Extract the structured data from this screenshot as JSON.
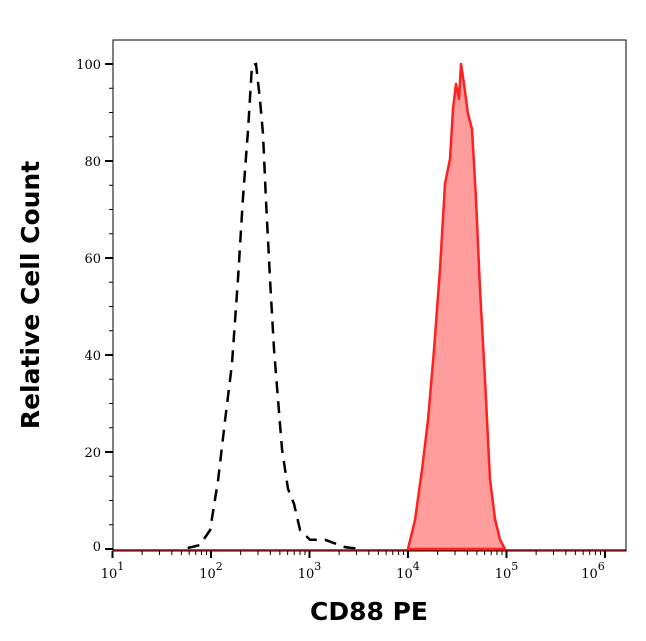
{
  "chart_data": {
    "type": "area",
    "title": "",
    "xlabel": "CD88 PE",
    "ylabel": "Relative Cell Count",
    "x_scale": "log",
    "xlim": [
      10,
      1600000
    ],
    "ylim": [
      0,
      100
    ],
    "x_ticks": [
      {
        "base": "10",
        "exp": "1"
      },
      {
        "base": "10",
        "exp": "2"
      },
      {
        "base": "10",
        "exp": "3"
      },
      {
        "base": "10",
        "exp": "4"
      },
      {
        "base": "10",
        "exp": "5"
      },
      {
        "base": "10",
        "exp": "6"
      }
    ],
    "x_tick_values": [
      10,
      100,
      1000,
      10000,
      100000,
      1000000
    ],
    "y_ticks": [
      "0",
      "20",
      "40",
      "60",
      "80",
      "100"
    ],
    "y_tick_values": [
      0,
      20,
      40,
      60,
      80,
      100
    ],
    "grid": false,
    "series": [
      {
        "style": "dashed-line",
        "color": "#000000",
        "x": [
          58,
          77,
          98,
          118,
          139,
          163,
          188,
          211,
          238,
          261,
          286,
          314,
          337,
          361,
          397,
          436,
          479,
          526,
          605,
          696,
          802,
          1012,
          1437,
          2291,
          3258
        ],
        "y": [
          0.2,
          0.8,
          3.9,
          14.2,
          26.6,
          38,
          55.7,
          72.2,
          86.6,
          99.8,
          100,
          92.8,
          85.6,
          72.2,
          55.7,
          41.2,
          30.9,
          20.6,
          12.4,
          9.3,
          3.9,
          1.9,
          1.9,
          0.4,
          0
        ]
      },
      {
        "style": "filled",
        "color": "#ff2020",
        "fill": "#ff9c9c",
        "x": [
          10000,
          11780,
          13870,
          15960,
          18370,
          21150,
          23770,
          26690,
          28640,
          30690,
          32960,
          34510,
          37070,
          40640,
          44670,
          48980,
          53830,
          60530,
          67920,
          76380,
          85910,
          96540
        ],
        "y": [
          0,
          6,
          16.3,
          26.6,
          41,
          57.7,
          75.3,
          80.4,
          90.7,
          95.9,
          92.8,
          100,
          95.9,
          89.7,
          86.6,
          72.2,
          53.6,
          35,
          14.4,
          6.2,
          1.9,
          0
        ]
      }
    ]
  }
}
